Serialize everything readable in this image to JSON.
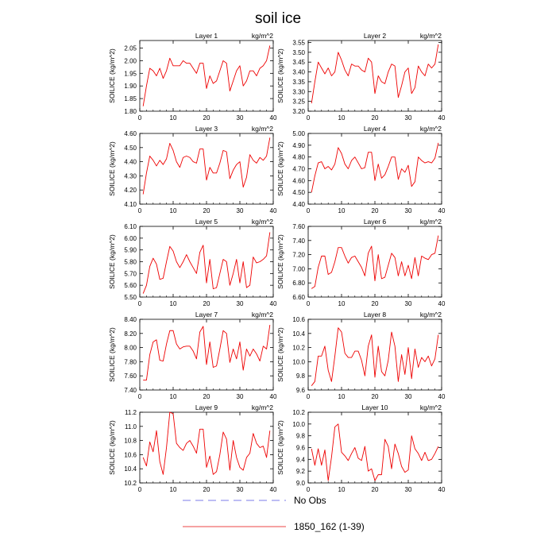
{
  "figure": {
    "title": "soil ice"
  },
  "legend": {
    "entries": [
      {
        "label": "No Obs",
        "color": "#7b7be8",
        "dashed": true
      },
      {
        "label": "1850_162 (1-39)",
        "color": "#ee4444",
        "dashed": false
      }
    ]
  },
  "chart_data": [
    {
      "type": "line",
      "title": "Layer 1",
      "units": "kg/m^2",
      "ylabel": "SOILICE  (kg/m^2)",
      "xlim": [
        0,
        40
      ],
      "ylim": [
        1.8,
        2.08
      ],
      "xticks": [
        0,
        10,
        20,
        30,
        40
      ],
      "yticks": [
        1.8,
        1.85,
        1.9,
        1.95,
        2.0,
        2.05
      ],
      "ytick_decimals": 2,
      "series": [
        {
          "name": "1850_162 (1-39)",
          "color": "#ee0000",
          "x": [
            1,
            2,
            3,
            4,
            5,
            6,
            7,
            8,
            9,
            10,
            11,
            12,
            13,
            14,
            15,
            16,
            17,
            18,
            19,
            20,
            21,
            22,
            23,
            24,
            25,
            26,
            27,
            28,
            29,
            30,
            31,
            32,
            33,
            34,
            35,
            36,
            37,
            38,
            39
          ],
          "y": [
            1.82,
            1.9,
            1.97,
            1.96,
            1.94,
            1.97,
            1.93,
            1.96,
            2.01,
            1.98,
            1.98,
            1.98,
            2.0,
            1.99,
            1.99,
            1.97,
            1.95,
            1.99,
            1.99,
            1.89,
            1.94,
            1.91,
            1.92,
            1.96,
            2.0,
            1.99,
            1.88,
            1.92,
            1.96,
            1.98,
            1.9,
            1.92,
            1.96,
            1.96,
            1.94,
            1.97,
            1.98,
            2.0,
            2.06
          ]
        }
      ]
    },
    {
      "type": "line",
      "title": "Layer 2",
      "units": "kg/m^2",
      "ylabel": "SOILICE  (kg/m^2)",
      "xlim": [
        0,
        40
      ],
      "ylim": [
        3.2,
        3.56
      ],
      "xticks": [
        0,
        10,
        20,
        30,
        40
      ],
      "yticks": [
        3.2,
        3.25,
        3.3,
        3.35,
        3.4,
        3.45,
        3.5,
        3.55
      ],
      "ytick_decimals": 2,
      "series": [
        {
          "name": "1850_162 (1-39)",
          "color": "#ee0000",
          "x": [
            1,
            2,
            3,
            4,
            5,
            6,
            7,
            8,
            9,
            10,
            11,
            12,
            13,
            14,
            15,
            16,
            17,
            18,
            19,
            20,
            21,
            22,
            23,
            24,
            25,
            26,
            27,
            28,
            29,
            30,
            31,
            32,
            33,
            34,
            35,
            36,
            37,
            38,
            39
          ],
          "y": [
            3.24,
            3.35,
            3.45,
            3.42,
            3.39,
            3.42,
            3.38,
            3.4,
            3.5,
            3.46,
            3.41,
            3.38,
            3.44,
            3.43,
            3.43,
            3.41,
            3.4,
            3.47,
            3.45,
            3.29,
            3.38,
            3.35,
            3.34,
            3.4,
            3.44,
            3.43,
            3.27,
            3.33,
            3.4,
            3.42,
            3.29,
            3.32,
            3.43,
            3.4,
            3.38,
            3.44,
            3.42,
            3.44,
            3.54
          ]
        }
      ]
    },
    {
      "type": "line",
      "title": "Layer 3",
      "units": "kg/m^2",
      "ylabel": "SOILICE  (kg/m^2)",
      "xlim": [
        0,
        40
      ],
      "ylim": [
        4.1,
        4.6
      ],
      "xticks": [
        0,
        10,
        20,
        30,
        40
      ],
      "yticks": [
        4.1,
        4.2,
        4.3,
        4.4,
        4.5,
        4.6
      ],
      "ytick_decimals": 2,
      "series": [
        {
          "name": "1850_162 (1-39)",
          "color": "#ee0000",
          "x": [
            1,
            2,
            3,
            4,
            5,
            6,
            7,
            8,
            9,
            10,
            11,
            12,
            13,
            14,
            15,
            16,
            17,
            18,
            19,
            20,
            21,
            22,
            23,
            24,
            25,
            26,
            27,
            28,
            29,
            30,
            31,
            32,
            33,
            34,
            35,
            36,
            37,
            38,
            39
          ],
          "y": [
            4.17,
            4.32,
            4.44,
            4.41,
            4.37,
            4.41,
            4.38,
            4.42,
            4.53,
            4.48,
            4.4,
            4.36,
            4.43,
            4.44,
            4.43,
            4.4,
            4.39,
            4.49,
            4.49,
            4.27,
            4.36,
            4.32,
            4.32,
            4.39,
            4.48,
            4.47,
            4.28,
            4.34,
            4.38,
            4.4,
            4.22,
            4.29,
            4.45,
            4.41,
            4.39,
            4.43,
            4.41,
            4.44,
            4.57
          ]
        }
      ]
    },
    {
      "type": "line",
      "title": "Layer 4",
      "units": "kg/m^2",
      "ylabel": "SOILICE  (kg/m^2)",
      "xlim": [
        0,
        40
      ],
      "ylim": [
        4.4,
        5.0
      ],
      "xticks": [
        0,
        10,
        20,
        30,
        40
      ],
      "yticks": [
        4.4,
        4.5,
        4.6,
        4.7,
        4.8,
        4.9,
        5.0
      ],
      "ytick_decimals": 2,
      "series": [
        {
          "name": "1850_162 (1-39)",
          "color": "#ee0000",
          "x": [
            1,
            2,
            3,
            4,
            5,
            6,
            7,
            8,
            9,
            10,
            11,
            12,
            13,
            14,
            15,
            16,
            17,
            18,
            19,
            20,
            21,
            22,
            23,
            24,
            25,
            26,
            27,
            28,
            29,
            30,
            31,
            32,
            33,
            34,
            35,
            36,
            37,
            38,
            39
          ],
          "y": [
            4.5,
            4.64,
            4.75,
            4.76,
            4.7,
            4.72,
            4.69,
            4.74,
            4.88,
            4.83,
            4.74,
            4.7,
            4.77,
            4.8,
            4.75,
            4.7,
            4.71,
            4.84,
            4.84,
            4.6,
            4.74,
            4.62,
            4.65,
            4.72,
            4.8,
            4.8,
            4.61,
            4.7,
            4.67,
            4.73,
            4.55,
            4.59,
            4.8,
            4.77,
            4.75,
            4.76,
            4.75,
            4.79,
            4.92
          ]
        }
      ]
    },
    {
      "type": "line",
      "title": "Layer 5",
      "units": "kg/m^2",
      "ylabel": "SOILICE  (kg/m^2)",
      "xlim": [
        0,
        40
      ],
      "ylim": [
        5.5,
        6.1
      ],
      "xticks": [
        0,
        10,
        20,
        30,
        40
      ],
      "yticks": [
        5.5,
        5.6,
        5.7,
        5.8,
        5.9,
        6.0,
        6.1
      ],
      "ytick_decimals": 2,
      "series": [
        {
          "name": "1850_162 (1-39)",
          "color": "#ee0000",
          "x": [
            1,
            2,
            3,
            4,
            5,
            6,
            7,
            8,
            9,
            10,
            11,
            12,
            13,
            14,
            15,
            16,
            17,
            18,
            19,
            20,
            21,
            22,
            23,
            24,
            25,
            26,
            27,
            28,
            29,
            30,
            31,
            32,
            33,
            34,
            35,
            36,
            37,
            38,
            39
          ],
          "y": [
            5.53,
            5.6,
            5.76,
            5.83,
            5.78,
            5.65,
            5.66,
            5.8,
            5.93,
            5.89,
            5.8,
            5.75,
            5.8,
            5.86,
            5.8,
            5.75,
            5.7,
            5.88,
            5.94,
            5.62,
            5.82,
            5.57,
            5.58,
            5.7,
            5.82,
            5.8,
            5.6,
            5.7,
            5.82,
            5.62,
            5.8,
            5.58,
            5.6,
            5.84,
            5.79,
            5.8,
            5.82,
            5.85,
            6.05
          ]
        }
      ]
    },
    {
      "type": "line",
      "title": "Layer 6",
      "units": "kg/m^2",
      "ylabel": "SOILICE  (kg/m^2)",
      "xlim": [
        0,
        40
      ],
      "ylim": [
        6.6,
        7.6
      ],
      "xticks": [
        0,
        10,
        20,
        30,
        40
      ],
      "yticks": [
        6.6,
        6.8,
        7.0,
        7.2,
        7.4,
        7.6
      ],
      "ytick_decimals": 2,
      "series": [
        {
          "name": "1850_162 (1-39)",
          "color": "#ee0000",
          "x": [
            1,
            2,
            3,
            4,
            5,
            6,
            7,
            8,
            9,
            10,
            11,
            12,
            13,
            14,
            15,
            16,
            17,
            18,
            19,
            20,
            21,
            22,
            23,
            24,
            25,
            26,
            27,
            28,
            29,
            30,
            31,
            32,
            33,
            34,
            35,
            36,
            37,
            38,
            39
          ],
          "y": [
            6.72,
            6.75,
            7.02,
            7.18,
            7.18,
            6.92,
            6.95,
            7.1,
            7.3,
            7.3,
            7.18,
            7.08,
            7.16,
            7.18,
            7.1,
            7.02,
            6.9,
            7.22,
            7.32,
            6.83,
            7.2,
            6.86,
            6.88,
            7.05,
            7.22,
            7.16,
            6.9,
            7.1,
            6.9,
            7.05,
            6.86,
            7.16,
            6.9,
            7.18,
            7.15,
            7.13,
            7.2,
            7.22,
            7.47
          ]
        }
      ]
    },
    {
      "type": "line",
      "title": "Layer 7",
      "units": "kg/m^2",
      "ylabel": "SOILICE  (kg/m^2)",
      "xlim": [
        0,
        40
      ],
      "ylim": [
        7.4,
        8.4
      ],
      "xticks": [
        0,
        10,
        20,
        30,
        40
      ],
      "yticks": [
        7.4,
        7.6,
        7.8,
        8.0,
        8.2,
        8.4
      ],
      "ytick_decimals": 2,
      "series": [
        {
          "name": "1850_162 (1-39)",
          "color": "#ee0000",
          "x": [
            1,
            2,
            3,
            4,
            5,
            6,
            7,
            8,
            9,
            10,
            11,
            12,
            13,
            14,
            15,
            16,
            17,
            18,
            19,
            20,
            21,
            22,
            23,
            24,
            25,
            26,
            27,
            28,
            29,
            30,
            31,
            32,
            33,
            34,
            35,
            36,
            37,
            38,
            39
          ],
          "y": [
            7.54,
            7.54,
            7.9,
            8.08,
            8.11,
            7.82,
            7.81,
            8.05,
            8.24,
            8.24,
            8.05,
            7.98,
            8.01,
            8.02,
            8.02,
            7.95,
            7.84,
            8.22,
            8.3,
            7.76,
            8.08,
            7.72,
            7.74,
            7.98,
            8.24,
            8.2,
            7.79,
            7.98,
            7.84,
            8.08,
            7.68,
            7.98,
            7.88,
            7.98,
            7.91,
            7.81,
            8.02,
            7.98,
            8.32
          ]
        }
      ]
    },
    {
      "type": "line",
      "title": "Layer 8",
      "units": "kg/m^2",
      "ylabel": "SOILICE  (kg/m^2)",
      "xlim": [
        0,
        40
      ],
      "ylim": [
        9.6,
        10.6
      ],
      "xticks": [
        0,
        10,
        20,
        30,
        40
      ],
      "yticks": [
        9.6,
        9.8,
        10.0,
        10.2,
        10.4,
        10.6
      ],
      "ytick_decimals": 1,
      "series": [
        {
          "name": "1850_162 (1-39)",
          "color": "#ee0000",
          "x": [
            1,
            2,
            3,
            4,
            5,
            6,
            7,
            8,
            9,
            10,
            11,
            12,
            13,
            14,
            15,
            16,
            17,
            18,
            19,
            20,
            21,
            22,
            23,
            24,
            25,
            26,
            27,
            28,
            29,
            30,
            31,
            32,
            33,
            34,
            35,
            36,
            37,
            38,
            39
          ],
          "y": [
            9.66,
            9.72,
            10.08,
            10.08,
            10.22,
            9.88,
            9.72,
            10.08,
            10.48,
            10.42,
            10.12,
            10.06,
            10.06,
            10.15,
            10.15,
            10.02,
            9.8,
            10.22,
            10.38,
            9.78,
            10.22,
            9.86,
            9.8,
            10.02,
            10.42,
            10.22,
            9.72,
            10.1,
            9.82,
            10.2,
            9.76,
            10.18,
            9.92,
            10.06,
            10.0,
            10.08,
            9.94,
            10.04,
            10.38
          ]
        }
      ]
    },
    {
      "type": "line",
      "title": "Layer 9",
      "units": "kg/m^2",
      "ylabel": "SOILICE  (kg/m^2)",
      "xlim": [
        0,
        40
      ],
      "ylim": [
        10.2,
        11.2
      ],
      "xticks": [
        0,
        10,
        20,
        30,
        40
      ],
      "yticks": [
        10.2,
        10.4,
        10.6,
        10.8,
        11.0,
        11.2
      ],
      "ytick_decimals": 1,
      "series": [
        {
          "name": "1850_162 (1-39)",
          "color": "#ee0000",
          "x": [
            1,
            2,
            3,
            4,
            5,
            6,
            7,
            8,
            9,
            10,
            11,
            12,
            13,
            14,
            15,
            16,
            17,
            18,
            19,
            20,
            21,
            22,
            23,
            24,
            25,
            26,
            27,
            28,
            29,
            30,
            31,
            32,
            33,
            34,
            35,
            36,
            37,
            38,
            39
          ],
          "y": [
            10.56,
            10.44,
            10.78,
            10.64,
            10.94,
            10.5,
            10.32,
            10.7,
            11.2,
            11.18,
            10.76,
            10.7,
            10.66,
            10.76,
            10.8,
            10.72,
            10.62,
            10.96,
            10.96,
            10.42,
            10.58,
            10.32,
            10.36,
            10.6,
            10.92,
            10.82,
            10.38,
            10.8,
            10.56,
            10.42,
            10.38,
            10.56,
            10.62,
            10.9,
            10.76,
            10.7,
            10.72,
            10.56,
            10.94
          ]
        }
      ]
    },
    {
      "type": "line",
      "title": "Layer 10",
      "units": "kg/m^2",
      "ylabel": "SOILICE  (kg/m^2)",
      "xlim": [
        0,
        40
      ],
      "ylim": [
        9.0,
        10.2
      ],
      "xticks": [
        0,
        10,
        20,
        30,
        40
      ],
      "yticks": [
        9.0,
        9.2,
        9.4,
        9.6,
        9.8,
        10.0,
        10.2
      ],
      "ytick_decimals": 1,
      "series": [
        {
          "name": "1850_162 (1-39)",
          "color": "#ee0000",
          "x": [
            1,
            2,
            3,
            4,
            5,
            6,
            7,
            8,
            9,
            10,
            11,
            12,
            13,
            14,
            15,
            16,
            17,
            18,
            19,
            20,
            21,
            22,
            23,
            24,
            25,
            26,
            27,
            28,
            29,
            30,
            31,
            32,
            33,
            34,
            35,
            36,
            37,
            38,
            39
          ],
          "y": [
            9.58,
            9.3,
            9.58,
            9.3,
            9.56,
            9.04,
            9.44,
            9.95,
            10.0,
            9.52,
            9.46,
            9.38,
            9.5,
            9.6,
            9.42,
            9.38,
            9.62,
            9.2,
            9.24,
            9.04,
            9.14,
            9.14,
            9.74,
            9.62,
            9.24,
            9.66,
            9.5,
            9.28,
            9.18,
            9.22,
            9.8,
            9.58,
            9.5,
            9.38,
            9.52,
            9.38,
            9.4,
            9.5,
            9.62
          ]
        }
      ]
    }
  ]
}
